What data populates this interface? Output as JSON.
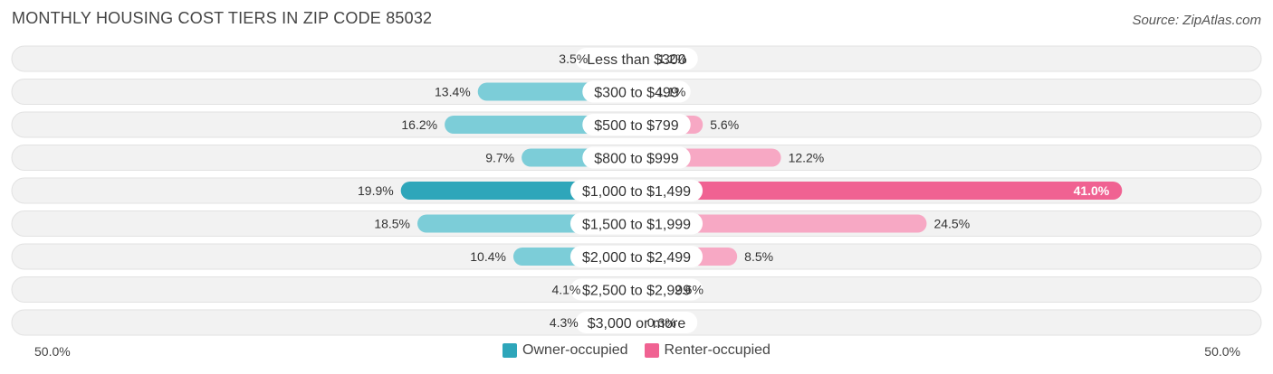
{
  "title": "MONTHLY HOUSING COST TIERS IN ZIP CODE 85032",
  "source": "Source: ZipAtlas.com",
  "axis": {
    "left_label": "50.0%",
    "right_label": "50.0%"
  },
  "legend": [
    {
      "name": "Owner-occupied",
      "color": "#2ea6ba"
    },
    {
      "name": "Renter-occupied",
      "color": "#f06292"
    }
  ],
  "chart_data": {
    "type": "bar",
    "orientation": "diverging-horizontal",
    "max_value": 50.0,
    "categories": [
      "Less than $300",
      "$300 to $499",
      "$500 to $799",
      "$800 to $999",
      "$1,000 to $1,499",
      "$1,500 to $1,999",
      "$2,000 to $2,499",
      "$2,500 to $2,999",
      "$3,000 or more"
    ],
    "series": [
      {
        "name": "Owner-occupied",
        "values": [
          3.5,
          13.4,
          16.2,
          9.7,
          19.9,
          18.5,
          10.4,
          4.1,
          4.3
        ]
      },
      {
        "name": "Renter-occupied",
        "values": [
          1.2,
          1.1,
          5.6,
          12.2,
          41.0,
          24.5,
          8.5,
          2.6,
          0.3
        ]
      }
    ],
    "value_labels": {
      "owner": [
        "3.5%",
        "13.4%",
        "16.2%",
        "9.7%",
        "19.9%",
        "18.5%",
        "10.4%",
        "4.1%",
        "4.3%"
      ],
      "renter": [
        "1.2%",
        "1.1%",
        "5.6%",
        "12.2%",
        "41.0%",
        "24.5%",
        "8.5%",
        "2.6%",
        "0.3%"
      ]
    },
    "colors": {
      "owner_light": "#7ccdd8",
      "owner_dark": "#2ea6ba",
      "renter_light": "#f7a8c4",
      "renter_dark": "#f06292"
    }
  }
}
